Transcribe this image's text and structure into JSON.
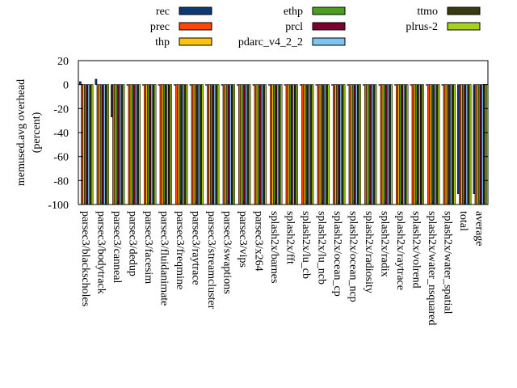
{
  "chart_data": {
    "type": "bar",
    "xlabel": "",
    "ylabel_line1": "memused.avg overhead",
    "ylabel_line2": "(percent)",
    "ylim": [
      -100,
      20
    ],
    "yticks": [
      20,
      0,
      -20,
      -40,
      -60,
      -80,
      -100
    ],
    "grid": false,
    "legend_position": "top",
    "categories": [
      "parsec3/blackscholes",
      "parsec3/bodytrack",
      "parsec3/canneal",
      "parsec3/dedup",
      "parsec3/facesim",
      "parsec3/fluidanimate",
      "parsec3/freqmine",
      "parsec3/raytrace",
      "parsec3/streamcluster",
      "parsec3/swaptions",
      "parsec3/vips",
      "parsec3/x264",
      "splash2x/barnes",
      "splash2x/fft",
      "splash2x/lu_cb",
      "splash2x/lu_ncb",
      "splash2x/ocean_cp",
      "splash2x/ocean_ncp",
      "splash2x/radiosity",
      "splash2x/radix",
      "splash2x/raytrace",
      "splash2x/volrend",
      "splash2x/water_nsquared",
      "splash2x/water_spatial",
      "total",
      "average"
    ],
    "series": [
      {
        "name": "rec",
        "color": "#0b3a77",
        "values": [
          2.5,
          4.5,
          -27,
          -0.5,
          -0.5,
          -0.5,
          -0.5,
          -0.5,
          -0.5,
          -0.5,
          -0.5,
          -0.5,
          -0.5,
          -0.5,
          -0.5,
          -0.5,
          -0.5,
          -0.5,
          -0.5,
          -0.5,
          -0.5,
          -0.5,
          -0.5,
          -0.5,
          -91,
          -91
        ]
      },
      {
        "name": "prec",
        "color": "#ff4500",
        "values": [
          -100,
          -100,
          -100,
          -100,
          -100,
          -100,
          -100,
          -100,
          -100,
          -100,
          -100,
          -100,
          -100,
          -100,
          -100,
          -100,
          -100,
          -100,
          -100,
          -100,
          -100,
          -100,
          -100,
          -100,
          -100,
          -100
        ]
      },
      {
        "name": "thp",
        "color": "#ffc20e",
        "values": [
          -100,
          -100,
          -100,
          -100,
          -100,
          -100,
          -100,
          -100,
          -100,
          -100,
          -100,
          -100,
          -100,
          -100,
          -100,
          -100,
          -100,
          -100,
          -100,
          -100,
          -100,
          -100,
          -100,
          -100,
          -100,
          -100
        ]
      },
      {
        "name": "ethp",
        "color": "#4a9f1e",
        "values": [
          -100,
          -100,
          -100,
          -100,
          -100,
          -100,
          -100,
          -100,
          -100,
          -100,
          -100,
          -100,
          -100,
          -100,
          -100,
          -100,
          -100,
          -100,
          -100,
          -100,
          -100,
          -100,
          -100,
          -100,
          -100,
          -100
        ]
      },
      {
        "name": "prcl",
        "color": "#7a0030",
        "values": [
          -100,
          -100,
          -100,
          -100,
          -100,
          -100,
          -100,
          -100,
          -100,
          -100,
          -100,
          -100,
          -100,
          -100,
          -100,
          -100,
          -100,
          -100,
          -100,
          -100,
          -100,
          -100,
          -100,
          -100,
          -100,
          -100
        ]
      },
      {
        "name": "pdarc_v4_2_2",
        "color": "#7cc4f4",
        "values": [
          -100,
          -100,
          -100,
          -100,
          -100,
          -100,
          -100,
          -100,
          -100,
          -100,
          -100,
          -100,
          -100,
          -100,
          -100,
          -100,
          -100,
          -100,
          -100,
          -100,
          -100,
          -100,
          -100,
          -100,
          -100,
          -100
        ]
      },
      {
        "name": "ttmo",
        "color": "#3a3a10",
        "values": [
          -100,
          -100,
          -100,
          -100,
          -100,
          -100,
          -100,
          -100,
          -100,
          -100,
          -100,
          -100,
          -100,
          -100,
          -100,
          -100,
          -100,
          -100,
          -100,
          -100,
          -100,
          -100,
          -100,
          -100,
          -100,
          -100
        ]
      },
      {
        "name": "plrus-2",
        "color": "#a8d21a",
        "values": [
          -100,
          -100,
          -100,
          -100,
          -100,
          -100,
          -100,
          -100,
          -100,
          -100,
          -100,
          -100,
          -100,
          -100,
          -100,
          -100,
          -100,
          -100,
          -100,
          -100,
          -100,
          -100,
          -100,
          -100,
          -100,
          -100
        ]
      }
    ]
  }
}
